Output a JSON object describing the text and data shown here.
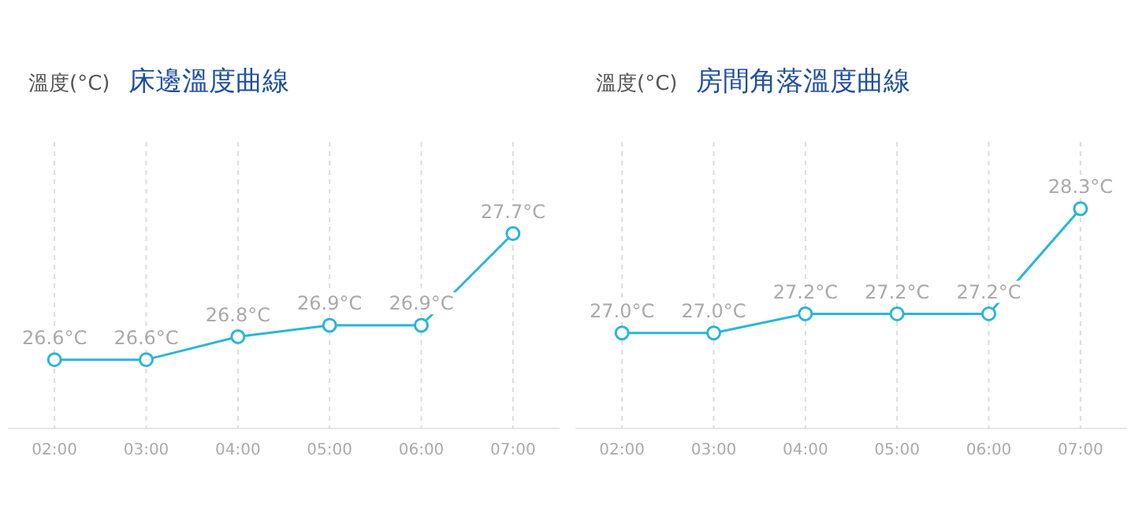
{
  "chart_data": [
    {
      "type": "line",
      "title": "床邊溫度曲線",
      "ylabel": "溫度(°C)",
      "categories": [
        "02:00",
        "03:00",
        "04:00",
        "05:00",
        "06:00",
        "07:00"
      ],
      "series": [
        {
          "color": "#2bb5d8",
          "values": [
            26.6,
            26.6,
            26.8,
            26.9,
            26.9,
            27.7
          ],
          "value_labels": [
            "26.6°C",
            "26.6°C",
            "26.8°C",
            "26.9°C",
            "26.9°C",
            "27.7°C"
          ]
        }
      ],
      "grid": "x",
      "marker": "circle",
      "line_style": "solid",
      "tick_labels": "x",
      "legend": false
    },
    {
      "type": "line",
      "title": "房間角落溫度曲線",
      "ylabel": "溫度(°C)",
      "categories": [
        "02:00",
        "03:00",
        "04:00",
        "05:00",
        "06:00",
        "07:00"
      ],
      "series": [
        {
          "color": "#2bb5d8",
          "values": [
            27.0,
            27.0,
            27.2,
            27.2,
            27.2,
            28.3
          ],
          "value_labels": [
            "27.0°C",
            "27.0°C",
            "27.2°C",
            "27.2°C",
            "27.2°C",
            "28.3°C"
          ]
        }
      ],
      "grid": "x",
      "marker": "circle",
      "line_style": "solid",
      "tick_labels": "x",
      "legend": false
    }
  ]
}
